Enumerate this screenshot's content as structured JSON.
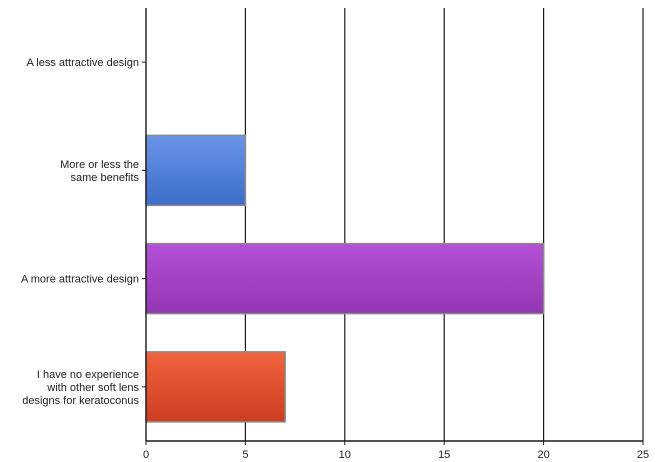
{
  "chart_data": {
    "type": "bar",
    "orientation": "horizontal",
    "title": "",
    "xlabel": "",
    "ylabel": "",
    "xlim": [
      0,
      25
    ],
    "xticks": [
      0,
      5,
      10,
      15,
      20,
      25
    ],
    "grid": "vertical",
    "legend": "none",
    "categories": [
      "A less attractive design",
      "More or less the same benefits",
      "A more attractive design",
      "I have no experience with other soft lens designs for keratoconus"
    ],
    "category_lines": [
      [
        "A less attractive design"
      ],
      [
        "More or less the",
        "same benefits"
      ],
      [
        "A more attractive design"
      ],
      [
        "I have no experience",
        "with other soft lens",
        "designs for keratoconus"
      ]
    ],
    "values": [
      0,
      5,
      20,
      7
    ],
    "colors": [
      [
        "#6b94e8",
        "#3c6ec9"
      ],
      [
        "#6b94e8",
        "#3c6ec9"
      ],
      [
        "#b550d6",
        "#9236b3"
      ],
      [
        "#f1643e",
        "#cf3d21"
      ]
    ]
  }
}
